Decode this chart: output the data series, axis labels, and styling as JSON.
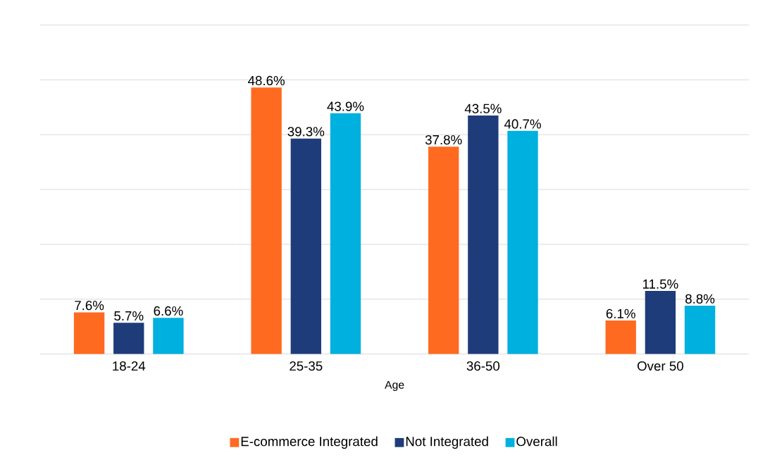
{
  "chart_data": {
    "type": "bar",
    "xlabel": "Age",
    "categories": [
      "18-24",
      "25-35",
      "36-50",
      "Over 50"
    ],
    "series": [
      {
        "name": "E-commerce Integrated",
        "color": "#ff6a21",
        "values": [
          7.6,
          48.6,
          37.8,
          6.1
        ],
        "value_labels": [
          "7.6%",
          "48.6%",
          "37.8%",
          "6.1%"
        ]
      },
      {
        "name": "Not Integrated",
        "color": "#1f3c7a",
        "values": [
          5.7,
          39.3,
          43.5,
          11.5
        ],
        "value_labels": [
          "5.7%",
          "39.3%",
          "43.5%",
          "11.5%"
        ]
      },
      {
        "name": "Overall",
        "color": "#00b0de",
        "values": [
          6.6,
          43.9,
          40.7,
          8.8
        ],
        "value_labels": [
          "6.6%",
          "43.9%",
          "40.7%",
          "8.8%"
        ]
      }
    ],
    "ylim": [
      0,
      60
    ],
    "yticks": [
      {
        "value": 0,
        "label": null
      },
      {
        "value": 10,
        "label": null
      },
      {
        "value": 20,
        "label": null
      },
      {
        "value": 30,
        "label": null
      },
      {
        "value": 40,
        "label": null
      },
      {
        "value": 50,
        "label": null
      },
      {
        "value": 60,
        "label": null
      }
    ],
    "grid": "y",
    "legend": "bottom"
  }
}
